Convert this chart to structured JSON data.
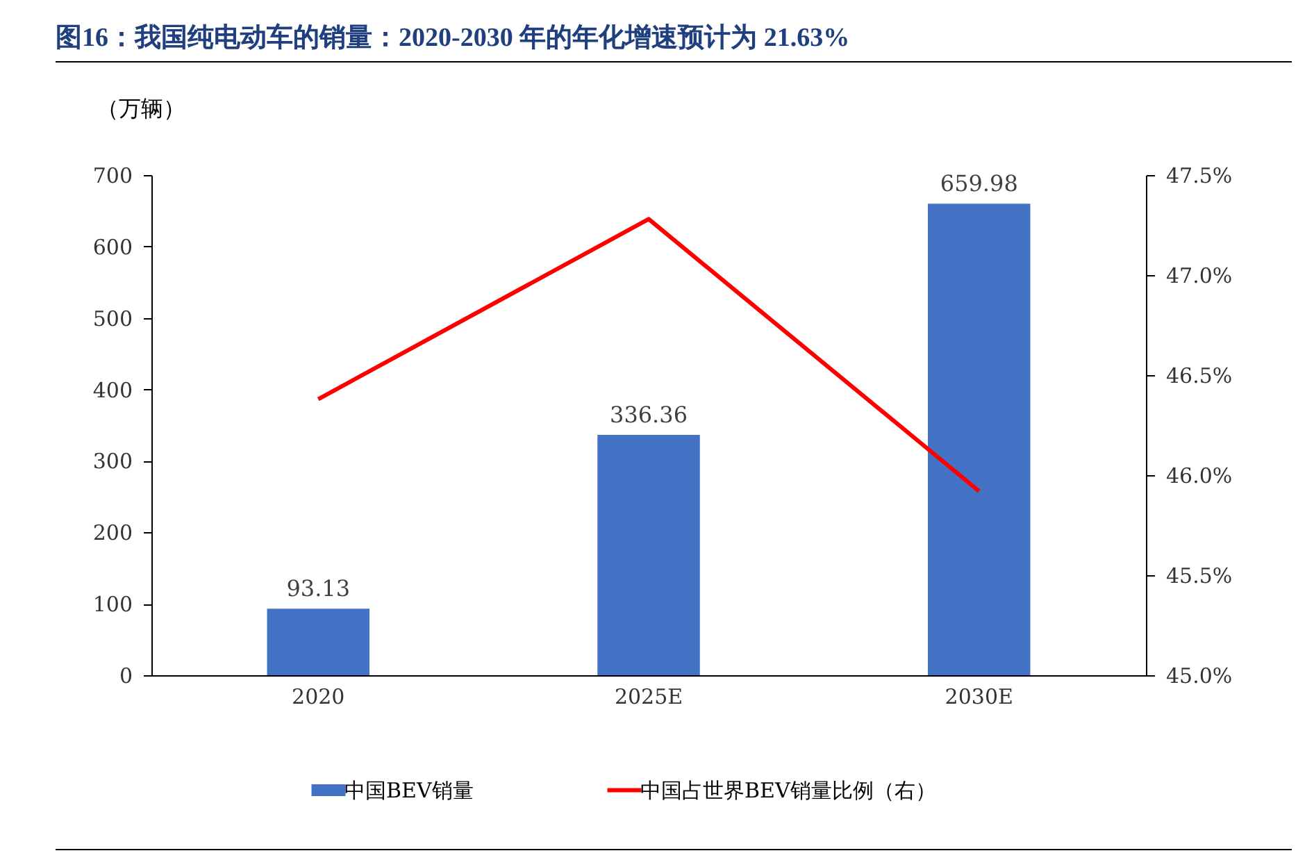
{
  "chart_data": {
    "type": "bar",
    "title": "图16：我国纯电动车的销量：2020-2030 年的年化增速预计为 21.63%",
    "ylabel": "（万辆）",
    "categories": [
      "2020",
      "2025E",
      "2030E"
    ],
    "series": [
      {
        "name": "中国BEV销量",
        "color": "#4472c4",
        "values": [
          93.13,
          336.36,
          659.98
        ],
        "value_labels": [
          "93.13",
          "336.36",
          "659.98"
        ]
      },
      {
        "name": "中国占世界BEV销量比例（右）",
        "type": "line",
        "axis": "y2",
        "color": "#ff0000",
        "values": [
          46.38,
          47.28,
          45.92
        ]
      }
    ],
    "ylim": [
      0,
      700
    ],
    "yticks": [
      0,
      100,
      200,
      300,
      400,
      500,
      600,
      700
    ],
    "y2lim": [
      45,
      47.5
    ],
    "y2ticks": [
      {
        "value": 45,
        "label": "45.0%"
      },
      {
        "value": 45.5,
        "label": "45.5%"
      },
      {
        "value": 46,
        "label": "46.0%"
      },
      {
        "value": 46.5,
        "label": "46.5%"
      },
      {
        "value": 47,
        "label": "47.0%"
      },
      {
        "value": 47.5,
        "label": "47.5%"
      }
    ],
    "grid": false,
    "legend": "bottom",
    "marker": "none"
  }
}
